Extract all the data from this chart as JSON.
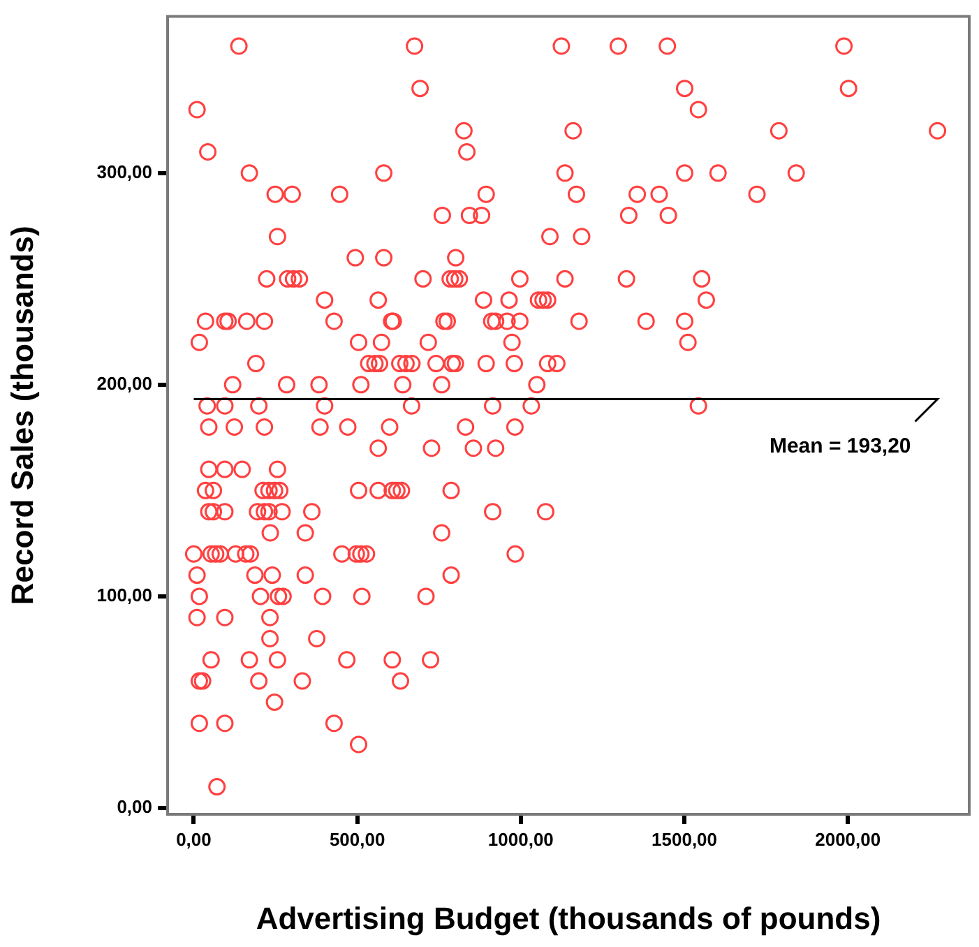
{
  "chart_data": {
    "type": "scatter",
    "xlabel": "Advertising Budget (thousands of pounds)",
    "ylabel": "Record Sales (thousands)",
    "xlim": [
      -80,
      2371
    ],
    "ylim": [
      -3,
      374
    ],
    "xticks": [
      {
        "value": 0,
        "label": "0,00"
      },
      {
        "value": 500,
        "label": "500,00"
      },
      {
        "value": 1000,
        "label": "1000,00"
      },
      {
        "value": 1500,
        "label": "1500,00"
      },
      {
        "value": 2000,
        "label": "2000,00"
      }
    ],
    "yticks": [
      {
        "value": 0,
        "label": "0,00"
      },
      {
        "value": 100,
        "label": "100,00"
      },
      {
        "value": 200,
        "label": "200,00"
      },
      {
        "value": 300,
        "label": "300,00"
      }
    ],
    "grid": false,
    "legend": false,
    "marker": "circle",
    "ref_lines": [
      {
        "axis": "y",
        "value": 193.2,
        "label": "Mean = 193,20",
        "color": "#000000"
      }
    ],
    "series": [
      {
        "color": "#ff4040",
        "x": [
          138,
          675,
          1124,
          1298,
          1448,
          1988,
          692,
          1501,
          2002,
          10,
          1543,
          826,
          1160,
          1789,
          2274,
          43,
          835,
          170,
          581,
          1135,
          1501,
          1603,
          1842,
          249,
          301,
          446,
          894,
          1170,
          1356,
          1423,
          1722,
          760,
          843,
          880,
          1330,
          1451,
          256,
          1089,
          1186,
          494,
          581,
          801,
          223,
          287,
          305,
          323,
          701,
          784,
          798,
          812,
          997,
          1135,
          1323,
          1553,
          400,
          564,
          886,
          964,
          1054,
          1068,
          1082,
          1567,
          36,
          95,
          105,
          162,
          216,
          429,
          605,
          610,
          765,
          775,
          911,
          923,
          958,
          997,
          1178,
          1383,
          1501,
          17,
          504,
          574,
          717,
          973,
          1511,
          190,
          535,
          554,
          568,
          630,
          649,
          667,
          741,
          790,
          800,
          894,
          980,
          1082,
          1110,
          119,
          284,
          383,
          511,
          639,
          758,
          1049,
          41,
          95,
          199,
          400,
          666,
          914,
          1032,
          1543,
          46,
          124,
          216,
          386,
          471,
          599,
          831,
          982,
          564,
          727,
          855,
          923,
          46,
          95,
          148,
          256,
          36,
          60,
          212,
          230,
          247,
          263,
          504,
          564,
          607,
          621,
          635,
          787,
          46,
          60,
          95,
          195,
          216,
          230,
          270,
          361,
          914,
          1076,
          234,
          341,
          758,
          0,
          53,
          67,
          81,
          128,
          159,
          173,
          453,
          497,
          511,
          528,
          983,
          10,
          187,
          240,
          341,
          787,
          17,
          204,
          259,
          273,
          394,
          514,
          710,
          10,
          95,
          233,
          233,
          376,
          53,
          170,
          256,
          468,
          607,
          724,
          17,
          27,
          199,
          332,
          632,
          247,
          17,
          95,
          429,
          504,
          71
        ],
        "values": [
          360,
          360,
          360,
          360,
          360,
          360,
          340,
          340,
          340,
          330,
          330,
          320,
          320,
          320,
          320,
          310,
          310,
          300,
          300,
          300,
          300,
          300,
          300,
          290,
          290,
          290,
          290,
          290,
          290,
          290,
          290,
          280,
          280,
          280,
          280,
          280,
          270,
          270,
          270,
          260,
          260,
          260,
          250,
          250,
          250,
          250,
          250,
          250,
          250,
          250,
          250,
          250,
          250,
          250,
          240,
          240,
          240,
          240,
          240,
          240,
          240,
          240,
          230,
          230,
          230,
          230,
          230,
          230,
          230,
          230,
          230,
          230,
          230,
          230,
          230,
          230,
          230,
          230,
          230,
          220,
          220,
          220,
          220,
          220,
          220,
          210,
          210,
          210,
          210,
          210,
          210,
          210,
          210,
          210,
          210,
          210,
          210,
          210,
          210,
          200,
          200,
          200,
          200,
          200,
          200,
          200,
          190,
          190,
          190,
          190,
          190,
          190,
          190,
          190,
          180,
          180,
          180,
          180,
          180,
          180,
          180,
          180,
          170,
          170,
          170,
          170,
          160,
          160,
          160,
          160,
          150,
          150,
          150,
          150,
          150,
          150,
          150,
          150,
          150,
          150,
          150,
          150,
          140,
          140,
          140,
          140,
          140,
          140,
          140,
          140,
          140,
          140,
          130,
          130,
          130,
          120,
          120,
          120,
          120,
          120,
          120,
          120,
          120,
          120,
          120,
          120,
          120,
          110,
          110,
          110,
          110,
          110,
          100,
          100,
          100,
          100,
          100,
          100,
          100,
          90,
          90,
          90,
          80,
          80,
          70,
          70,
          70,
          70,
          70,
          70,
          60,
          60,
          60,
          60,
          60,
          50,
          40,
          40,
          40,
          30,
          10
        ]
      }
    ]
  }
}
